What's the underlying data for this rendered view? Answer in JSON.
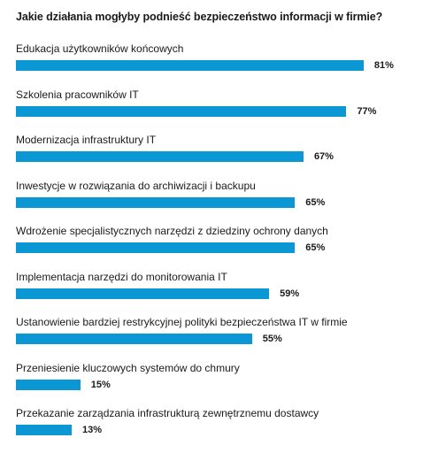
{
  "chart_data": {
    "type": "bar",
    "orientation": "horizontal",
    "title": "Jakie działania mogłyby podnieść bezpieczeństwo informacji w firmie?",
    "categories": [
      "Edukacja użytkowników końcowych",
      "Szkolenia pracowników IT",
      "Modernizacja infrastruktury IT",
      "Inwestycje w rozwiązania do archiwizacji i backupu",
      "Wdrożenie specjalistycznych narzędzi z dziedziny ochrony danych",
      "Implementacja narzędzi do monitorowania IT",
      "Ustanowienie bardziej restrykcyjnej polityki bezpieczeństwa IT w firmie",
      "Przeniesienie kluczowych systemów do chmury",
      "Przekazanie zarządzania infrastrukturą zewnętrznemu dostawcy"
    ],
    "values": [
      81,
      77,
      67,
      65,
      65,
      59,
      55,
      15,
      13
    ],
    "value_labels": [
      "81%",
      "77%",
      "67%",
      "65%",
      "65%",
      "59%",
      "55%",
      "15%",
      "13%"
    ],
    "unit": "%",
    "xlim": [
      0,
      100
    ],
    "grid": false,
    "legend": "none",
    "bar_color": "#0b96d4"
  }
}
